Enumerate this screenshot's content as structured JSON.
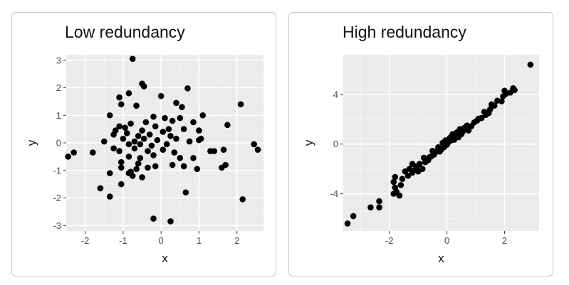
{
  "chart_data": [
    {
      "type": "scatter",
      "title": "Low redundancy",
      "xlabel": "x",
      "ylabel": "y",
      "xlim": [
        -2.5,
        2.7
      ],
      "ylim": [
        -3.2,
        3.2
      ],
      "xticks": [
        -2,
        -1,
        0,
        1,
        2
      ],
      "yticks": [
        -3,
        -2,
        -1,
        0,
        1,
        2,
        3
      ],
      "xtick_labels": [
        "-2",
        "-1",
        "0",
        "1",
        "2"
      ],
      "ytick_labels": [
        "-3",
        "-2",
        "-1",
        "0",
        "1",
        "2",
        "3"
      ],
      "grid": true,
      "background": "#ebebeb",
      "point_color": "#000000",
      "points": [
        [
          -0.75,
          3.05
        ],
        [
          -0.5,
          2.15
        ],
        [
          -0.45,
          2.05
        ],
        [
          0.7,
          1.98
        ],
        [
          -0.85,
          1.8
        ],
        [
          0,
          1.7
        ],
        [
          -1.1,
          1.65
        ],
        [
          -1.05,
          1.4
        ],
        [
          0.4,
          1.45
        ],
        [
          0.55,
          1.3
        ],
        [
          2.1,
          1.4
        ],
        [
          -0.65,
          1.35
        ],
        [
          -0.2,
          0.95
        ],
        [
          0.1,
          0.9
        ],
        [
          0.5,
          0.9
        ],
        [
          1.1,
          1.0
        ],
        [
          -1.35,
          1.0
        ],
        [
          -0.4,
          0.75
        ],
        [
          0.3,
          0.8
        ],
        [
          -1.1,
          0.6
        ],
        [
          -0.95,
          0.55
        ],
        [
          -0.8,
          0.7
        ],
        [
          -0.15,
          0.6
        ],
        [
          0.2,
          0.5
        ],
        [
          0.85,
          0.75
        ],
        [
          1.75,
          0.65
        ],
        [
          -1.2,
          0.45
        ],
        [
          -0.9,
          0.35
        ],
        [
          -0.5,
          0.45
        ],
        [
          0.05,
          0.4
        ],
        [
          0.6,
          0.5
        ],
        [
          -1.25,
          0.3
        ],
        [
          -0.6,
          0.25
        ],
        [
          -0.3,
          0.3
        ],
        [
          0.25,
          0.25
        ],
        [
          1.0,
          0.45
        ],
        [
          -1.0,
          0.15
        ],
        [
          -0.7,
          0.05
        ],
        [
          -0.45,
          0.15
        ],
        [
          -0.1,
          0.1
        ],
        [
          0.4,
          0.15
        ],
        [
          1.0,
          0.1
        ],
        [
          1.05,
          0.15
        ],
        [
          -1.5,
          0.05
        ],
        [
          -0.85,
          -0.05
        ],
        [
          -0.55,
          -0.05
        ],
        [
          -0.25,
          -0.1
        ],
        [
          0.15,
          -0.05
        ],
        [
          0.75,
          0.05
        ],
        [
          2.45,
          -0.05
        ],
        [
          -2.3,
          -0.35
        ],
        [
          -2.45,
          -0.5
        ],
        [
          -1.8,
          -0.35
        ],
        [
          -1.25,
          -0.2
        ],
        [
          -1.1,
          -0.3
        ],
        [
          -0.7,
          -0.2
        ],
        [
          -0.35,
          -0.3
        ],
        [
          0.05,
          -0.25
        ],
        [
          0.35,
          -0.35
        ],
        [
          1.3,
          -0.3
        ],
        [
          1.4,
          -0.3
        ],
        [
          1.65,
          -0.25
        ],
        [
          2.55,
          -0.25
        ],
        [
          -0.85,
          -0.5
        ],
        [
          -0.55,
          -0.55
        ],
        [
          -0.2,
          -0.45
        ],
        [
          0.5,
          -0.55
        ],
        [
          0.85,
          -0.55
        ],
        [
          -1.05,
          -0.7
        ],
        [
          -0.6,
          -0.75
        ],
        [
          0.3,
          -0.8
        ],
        [
          0.6,
          -0.85
        ],
        [
          1.6,
          -0.9
        ],
        [
          1.7,
          -0.8
        ],
        [
          -1.05,
          -0.9
        ],
        [
          -0.65,
          -0.95
        ],
        [
          -0.35,
          -0.9
        ],
        [
          -0.15,
          -0.85
        ],
        [
          0.95,
          -0.95
        ],
        [
          -0.8,
          -1.05
        ],
        [
          -1.35,
          -1.1
        ],
        [
          -0.85,
          -1.1
        ],
        [
          -0.75,
          -1.2
        ],
        [
          -0.5,
          -1.25
        ],
        [
          -1.05,
          -1.5
        ],
        [
          -1.6,
          -1.65
        ],
        [
          0.65,
          -1.8
        ],
        [
          -1.35,
          -1.95
        ],
        [
          2.15,
          -2.05
        ],
        [
          -0.2,
          -2.75
        ],
        [
          0.25,
          -2.85
        ]
      ]
    },
    {
      "type": "scatter",
      "title": "High redundancy",
      "xlabel": "x",
      "ylabel": "y",
      "xlim": [
        -3.6,
        3.2
      ],
      "ylim": [
        -7.0,
        7.2
      ],
      "xticks": [
        -2,
        0,
        2
      ],
      "yticks": [
        -4,
        0,
        4
      ],
      "xtick_labels": [
        "-2",
        "0",
        "2"
      ],
      "ytick_labels": [
        "-4",
        "0",
        "4"
      ],
      "grid": true,
      "background": "#ebebeb",
      "point_color": "#000000",
      "points": [
        [
          -3.45,
          -6.4
        ],
        [
          -3.25,
          -5.8
        ],
        [
          -2.65,
          -5.1
        ],
        [
          -2.35,
          -5.1
        ],
        [
          -2.35,
          -4.6
        ],
        [
          -1.85,
          -4.0
        ],
        [
          -1.75,
          -3.85
        ],
        [
          -1.65,
          -4.15
        ],
        [
          -1.8,
          -3.5
        ],
        [
          -1.6,
          -3.3
        ],
        [
          -1.85,
          -3.05
        ],
        [
          -1.8,
          -2.65
        ],
        [
          -1.55,
          -2.8
        ],
        [
          -1.35,
          -2.55
        ],
        [
          -1.45,
          -2.2
        ],
        [
          -1.2,
          -2.3
        ],
        [
          -1.1,
          -2.05
        ],
        [
          -1.05,
          -1.8
        ],
        [
          -1.2,
          -1.6
        ],
        [
          -0.95,
          -1.6
        ],
        [
          -0.85,
          -2.0
        ],
        [
          -0.75,
          -1.45
        ],
        [
          -0.65,
          -1.3
        ],
        [
          -0.8,
          -1.1
        ],
        [
          -0.55,
          -1.0
        ],
        [
          -0.45,
          -0.85
        ],
        [
          -0.35,
          -0.6
        ],
        [
          -0.5,
          -0.55
        ],
        [
          -0.2,
          -0.45
        ],
        [
          -0.3,
          -0.25
        ],
        [
          -0.1,
          -0.25
        ],
        [
          0.0,
          -0.05
        ],
        [
          -0.15,
          0.1
        ],
        [
          0.05,
          0.15
        ],
        [
          0.15,
          0.3
        ],
        [
          0.25,
          0.35
        ],
        [
          0.1,
          0.5
        ],
        [
          0.3,
          0.65
        ],
        [
          0.4,
          0.55
        ],
        [
          0.2,
          0.8
        ],
        [
          0.35,
          0.95
        ],
        [
          0.5,
          0.8
        ],
        [
          0.55,
          1.0
        ],
        [
          0.45,
          1.2
        ],
        [
          0.65,
          1.25
        ],
        [
          0.75,
          1.1
        ],
        [
          0.7,
          1.5
        ],
        [
          0.85,
          1.45
        ],
        [
          0.95,
          1.75
        ],
        [
          1.05,
          1.9
        ],
        [
          1.2,
          2.1
        ],
        [
          1.35,
          2.35
        ],
        [
          1.3,
          2.6
        ],
        [
          1.5,
          2.8
        ],
        [
          1.55,
          3.2
        ],
        [
          1.65,
          3.1
        ],
        [
          1.75,
          3.5
        ],
        [
          1.9,
          3.45
        ],
        [
          1.95,
          3.85
        ],
        [
          2.05,
          4.05
        ],
        [
          2.0,
          4.3
        ],
        [
          2.2,
          4.15
        ],
        [
          2.35,
          4.35
        ],
        [
          2.3,
          4.5
        ],
        [
          2.9,
          6.4
        ],
        [
          -1.3,
          -2.0
        ],
        [
          -1.0,
          -2.2
        ],
        [
          -0.6,
          -1.05
        ],
        [
          -0.25,
          -0.6
        ],
        [
          0.6,
          1.3
        ],
        [
          0.15,
          0.6
        ],
        [
          -0.05,
          0.3
        ],
        [
          0.35,
          0.7
        ],
        [
          1.45,
          2.5
        ],
        [
          1.1,
          2.05
        ]
      ]
    }
  ]
}
